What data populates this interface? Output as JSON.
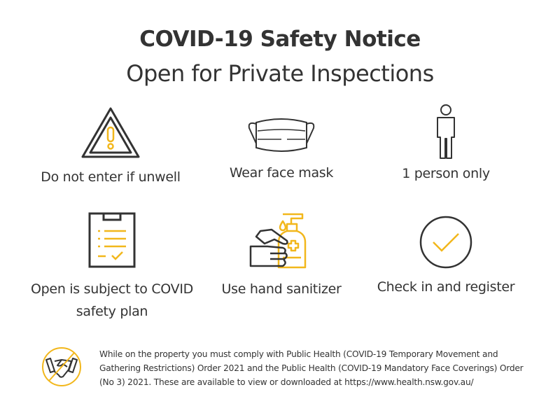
{
  "header": {
    "title": "COVID-19 Safety Notice",
    "subtitle": "Open for Private Inspections"
  },
  "colors": {
    "accent": "#f2b71c",
    "ink": "#333333"
  },
  "items": [
    {
      "icon": "warning-triangle-icon",
      "label": "Do not enter if unwell"
    },
    {
      "icon": "face-mask-icon",
      "label": "Wear face mask"
    },
    {
      "icon": "person-icon",
      "label": "1 person only"
    },
    {
      "icon": "clipboard-checklist-icon",
      "label": "Open is subject to COVID safety plan"
    },
    {
      "icon": "hand-sanitizer-icon",
      "label": "Use hand sanitizer"
    },
    {
      "icon": "checkmark-circle-icon",
      "label": "Check in and register"
    }
  ],
  "notice": {
    "icon": "no-handshake-icon",
    "text": "While on the property you must comply with Public Health (COVID-19 Temporary Movement and Gathering Restrictions) Order 2021 and the Public Health (COVID-19 Mandatory Face Coverings) Order (No 3) 2021. These are available to view or downloaded at https://www.health.nsw.gov.au/"
  }
}
